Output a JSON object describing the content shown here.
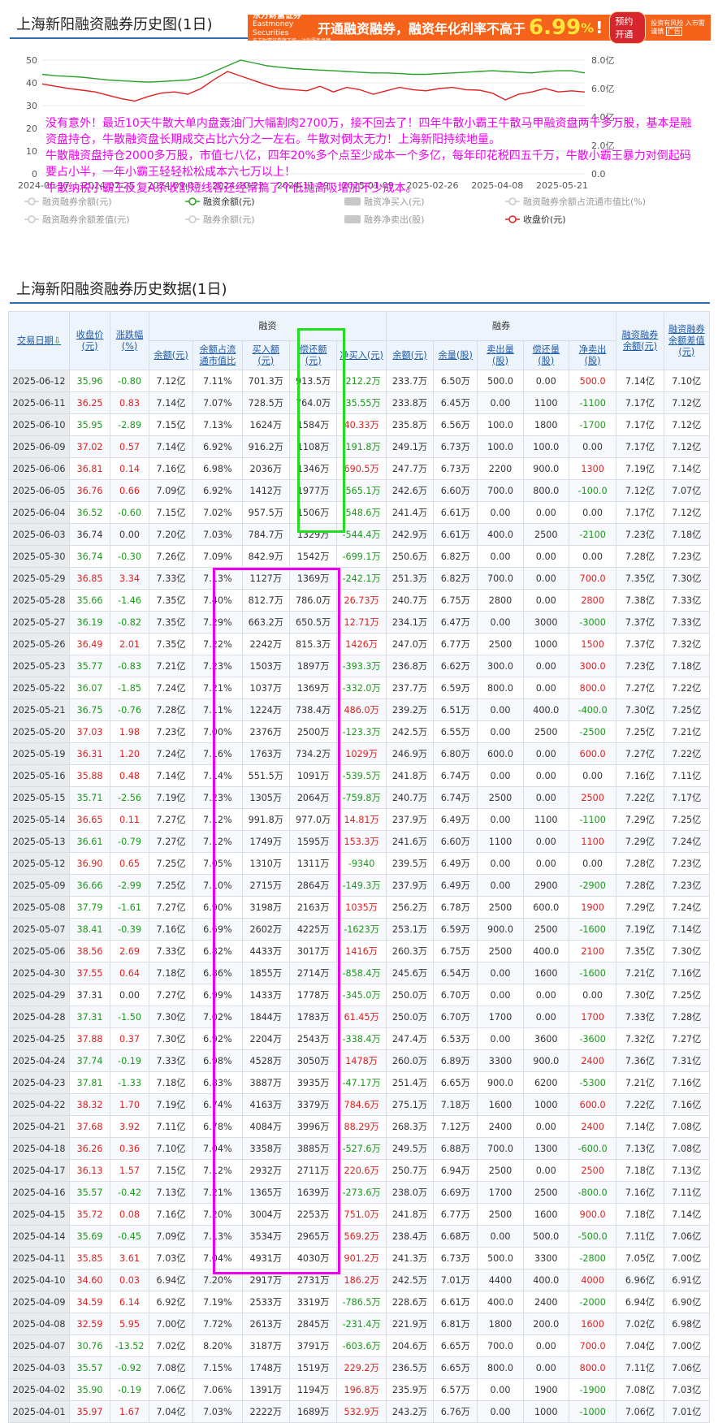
{
  "chart_section": {
    "title": "上海新阳融资融券历史图(1日)"
  },
  "ad": {
    "brand": "东方财富证券",
    "brand_en": "Eastmoney Securities",
    "brand_note": "东方财富证券旗下统一对外服务品牌",
    "slogan": "开通融资融券，融资年化利率不高于",
    "rate": "6.99",
    "pct": "%",
    "excl": "!",
    "button": "预约开通",
    "risk": "投资有风险 入市需谨慎",
    "tag": "广告"
  },
  "overlay_text": [
    "没有意外！最近10天牛散大单内盘轰油门大幅割肉2700万，接不回去了！四年牛散小霸王牛散马甲融资盘两千多万股，基本是融资盘持仓，牛散融资盘长期成交占比六分之一左右。牛散对倒太无力！上海新阳持续地量。",
    "牛散融资盘持仓2000多万股，市值七八亿，四年20%多个点至少成本一个多亿，每年印花税四五千万，牛散小霸王暴力对倒起码要占小半，一年小霸王轻轻松松成本六七万以上！",
    "牛散纳税小霸王反复A杀收割短线客还经常搞了个低抛高吸增加不少成本。"
  ],
  "chart_data": {
    "type": "line",
    "x_ticks": [
      "2024-06-17",
      "2024-07-25",
      "2024-09-03",
      "2024-10-22",
      "2024-11-29",
      "2025-01-09",
      "2025-02-26",
      "2025-04-08",
      "2025-05-21"
    ],
    "y_left": {
      "ticks": [
        "0",
        "10",
        "20",
        "30",
        "40",
        "50"
      ],
      "range": [
        0,
        50
      ]
    },
    "y_right": {
      "ticks": [
        "0.0",
        "2.0亿",
        "4.0亿",
        "6.0亿",
        "8.0亿"
      ],
      "range": [
        0,
        8
      ]
    },
    "series": [
      {
        "name": "融资余额(元)",
        "axis": "right",
        "color": "#2aa02a",
        "values": [
          7.0,
          6.9,
          6.85,
          6.8,
          6.7,
          6.6,
          6.55,
          6.5,
          6.45,
          6.5,
          6.55,
          6.6,
          6.8,
          7.2,
          7.6,
          8.0,
          7.8,
          7.6,
          7.5,
          7.4,
          7.35,
          7.3,
          7.25,
          7.2,
          7.15,
          7.1,
          7.1,
          7.05,
          7.0,
          7.0,
          7.05,
          7.1,
          7.15,
          7.2,
          7.25,
          7.2,
          7.15,
          7.1,
          7.2,
          7.25,
          7.25,
          7.1
        ]
      },
      {
        "name": "收盘价(元)",
        "axis": "left",
        "color": "#e02020",
        "values": [
          39.5,
          38.5,
          37.5,
          36.8,
          36.0,
          34.5,
          33.0,
          32.0,
          34.0,
          35.5,
          36.0,
          35.0,
          37.5,
          41.5,
          45.0,
          43.0,
          41.0,
          39.0,
          37.5,
          37.0,
          36.5,
          38.5,
          36.0,
          38.0,
          37.0,
          35.0,
          36.5,
          38.0,
          37.0,
          36.5,
          37.5,
          38.0,
          37.0,
          36.8,
          35.5,
          32.5,
          35.0,
          36.0,
          37.5,
          36.0,
          36.5,
          35.96
        ]
      }
    ],
    "legend": [
      {
        "label": "融资融券余额(元)",
        "active": false,
        "style": "circle"
      },
      {
        "label": "融资余额(元)",
        "active": true,
        "style": "circle",
        "color": "#2aa02a"
      },
      {
        "label": "融资净买入(元)",
        "active": false,
        "style": "rect"
      },
      {
        "label": "融资融券余额占流通市值比(%)",
        "active": false,
        "style": "circle"
      },
      {
        "label": "融资融券余额差值(元)",
        "active": false,
        "style": "circle"
      },
      {
        "label": "融券余额(元)",
        "active": false,
        "style": "circle"
      },
      {
        "label": "融券净卖出(股)",
        "active": false,
        "style": "rect"
      },
      {
        "label": "收盘价(元)",
        "active": true,
        "style": "circle",
        "color": "#e02020"
      }
    ]
  },
  "table_section": {
    "title": "上海新阳融资融券历史数据(1日)"
  },
  "table": {
    "group_headers": {
      "rz": "融资",
      "rq": "融券"
    },
    "headers": {
      "date": "交易日期",
      "close": "收盘价(元)",
      "chg": "涨跌幅(%)",
      "rz_bal": "余额(元)",
      "rz_ratio": "余额占流通市值比",
      "buy": "买入额(元)",
      "repay": "偿还额(元)",
      "netbuy": "净买入(元)",
      "rq_bal": "余额(元)",
      "rq_vol": "余量(股)",
      "sell": "卖出量(股)",
      "rq_repay": "偿还量(股)",
      "netsell": "净卖出(股)",
      "total": "融资融券余额(元)",
      "diff": "融资融券余额差值(元)"
    },
    "rows": [
      [
        "2025-06-12",
        "35.96",
        "-0.80",
        "7.12亿",
        "7.11%",
        "701.3万",
        "913.5万",
        "-212.2万",
        "233.7万",
        "6.50万",
        "500.0",
        "0.00",
        "500.0",
        "7.14亿",
        "7.10亿"
      ],
      [
        "2025-06-11",
        "36.25",
        "0.83",
        "7.14亿",
        "7.07%",
        "728.5万",
        "764.0万",
        "-35.55万",
        "233.8万",
        "6.45万",
        "0.00",
        "1100",
        "-1100",
        "7.17亿",
        "7.12亿"
      ],
      [
        "2025-06-10",
        "35.95",
        "-2.89",
        "7.15亿",
        "7.13%",
        "1624万",
        "1584万",
        "40.33万",
        "235.8万",
        "6.56万",
        "100.0",
        "1800",
        "-1700",
        "7.17亿",
        "7.12亿"
      ],
      [
        "2025-06-09",
        "37.02",
        "0.57",
        "7.14亿",
        "6.92%",
        "916.2万",
        "1108万",
        "-191.8万",
        "249.1万",
        "6.73万",
        "100.0",
        "100.0",
        "0.00",
        "7.17亿",
        "7.12亿"
      ],
      [
        "2025-06-06",
        "36.81",
        "0.14",
        "7.16亿",
        "6.98%",
        "2036万",
        "1346万",
        "690.5万",
        "247.7万",
        "6.73万",
        "2200",
        "900.0",
        "1300",
        "7.19亿",
        "7.14亿"
      ],
      [
        "2025-06-05",
        "36.76",
        "0.66",
        "7.09亿",
        "6.92%",
        "1412万",
        "1977万",
        "-565.1万",
        "242.6万",
        "6.60万",
        "700.0",
        "800.0",
        "-100.0",
        "7.12亿",
        "7.07亿"
      ],
      [
        "2025-06-04",
        "36.52",
        "-0.60",
        "7.15亿",
        "7.02%",
        "957.5万",
        "1506万",
        "-548.6万",
        "241.4万",
        "6.61万",
        "0.00",
        "0.00",
        "0.00",
        "7.17亿",
        "7.12亿"
      ],
      [
        "2025-06-03",
        "36.74",
        "0.00",
        "7.20亿",
        "7.03%",
        "784.7万",
        "1329万",
        "-544.4万",
        "242.9万",
        "6.61万",
        "400.0",
        "2500",
        "-2100",
        "7.23亿",
        "7.18亿"
      ],
      [
        "2025-05-30",
        "36.74",
        "-0.30",
        "7.26亿",
        "7.09%",
        "842.9万",
        "1542万",
        "-699.1万",
        "250.6万",
        "6.82万",
        "0.00",
        "0.00",
        "0.00",
        "7.28亿",
        "7.23亿"
      ],
      [
        "2025-05-29",
        "36.85",
        "3.34",
        "7.33亿",
        "7.13%",
        "1127万",
        "1369万",
        "-242.1万",
        "251.3万",
        "6.82万",
        "700.0",
        "0.00",
        "700.0",
        "7.35亿",
        "7.30亿"
      ],
      [
        "2025-05-28",
        "35.66",
        "-1.46",
        "7.35亿",
        "7.40%",
        "812.7万",
        "786.0万",
        "26.73万",
        "240.7万",
        "6.75万",
        "2800",
        "0.00",
        "2800",
        "7.38亿",
        "7.33亿"
      ],
      [
        "2025-05-27",
        "36.19",
        "-0.82",
        "7.35亿",
        "7.29%",
        "663.2万",
        "650.5万",
        "12.71万",
        "234.1万",
        "6.47万",
        "0.00",
        "3000",
        "-3000",
        "7.37亿",
        "7.33亿"
      ],
      [
        "2025-05-26",
        "36.49",
        "2.01",
        "7.35亿",
        "7.22%",
        "2242万",
        "815.3万",
        "1426万",
        "247.0万",
        "6.77万",
        "2500",
        "1000",
        "1500",
        "7.37亿",
        "7.32亿"
      ],
      [
        "2025-05-23",
        "35.77",
        "-0.83",
        "7.21亿",
        "7.23%",
        "1503万",
        "1897万",
        "-393.3万",
        "236.8万",
        "6.62万",
        "300.0",
        "0.00",
        "300.0",
        "7.23亿",
        "7.18亿"
      ],
      [
        "2025-05-22",
        "36.07",
        "-1.85",
        "7.24亿",
        "7.21%",
        "1037万",
        "1369万",
        "-332.0万",
        "237.7万",
        "6.59万",
        "800.0",
        "0.00",
        "800.0",
        "7.27亿",
        "7.22亿"
      ],
      [
        "2025-05-21",
        "36.75",
        "-0.76",
        "7.28亿",
        "7.11%",
        "1224万",
        "738.4万",
        "486.0万",
        "239.2万",
        "6.51万",
        "0.00",
        "400.0",
        "-400.0",
        "7.30亿",
        "7.25亿"
      ],
      [
        "2025-05-20",
        "37.03",
        "1.98",
        "7.23亿",
        "7.00%",
        "2376万",
        "2500万",
        "-123.3万",
        "242.5万",
        "6.55万",
        "0.00",
        "2500",
        "-2500",
        "7.25亿",
        "7.21亿"
      ],
      [
        "2025-05-19",
        "36.31",
        "1.20",
        "7.24亿",
        "7.16%",
        "1763万",
        "734.2万",
        "1029万",
        "246.9万",
        "6.80万",
        "600.0",
        "0.00",
        "600.0",
        "7.27亿",
        "7.22亿"
      ],
      [
        "2025-05-16",
        "35.88",
        "0.48",
        "7.14亿",
        "7.14%",
        "551.5万",
        "1091万",
        "-539.5万",
        "241.8万",
        "6.74万",
        "0.00",
        "0.00",
        "0.00",
        "7.16亿",
        "7.11亿"
      ],
      [
        "2025-05-15",
        "35.71",
        "-2.56",
        "7.19亿",
        "7.23%",
        "1305万",
        "2064万",
        "-759.8万",
        "240.7万",
        "6.74万",
        "2500",
        "0.00",
        "2500",
        "7.22亿",
        "7.17亿"
      ],
      [
        "2025-05-14",
        "36.65",
        "0.11",
        "7.27亿",
        "7.12%",
        "991.8万",
        "977.0万",
        "14.81万",
        "237.9万",
        "6.49万",
        "0.00",
        "1100",
        "-1100",
        "7.29亿",
        "7.25亿"
      ],
      [
        "2025-05-13",
        "36.61",
        "-0.79",
        "7.27亿",
        "7.12%",
        "1749万",
        "1595万",
        "153.3万",
        "241.6万",
        "6.60万",
        "1100",
        "0.00",
        "1100",
        "7.29亿",
        "7.24亿"
      ],
      [
        "2025-05-12",
        "36.90",
        "0.65",
        "7.25亿",
        "7.05%",
        "1310万",
        "1311万",
        "-9340",
        "239.5万",
        "6.49万",
        "0.00",
        "0.00",
        "0.00",
        "7.28亿",
        "7.23亿"
      ],
      [
        "2025-05-09",
        "36.66",
        "-2.99",
        "7.25亿",
        "7.10%",
        "2715万",
        "2864万",
        "-149.3万",
        "237.9万",
        "6.49万",
        "0.00",
        "2900",
        "-2900",
        "7.28亿",
        "7.23亿"
      ],
      [
        "2025-05-08",
        "37.79",
        "-1.61",
        "7.27亿",
        "6.90%",
        "3198万",
        "2163万",
        "1035万",
        "256.2万",
        "6.78万",
        "2500",
        "600.0",
        "1900",
        "7.29亿",
        "7.24亿"
      ],
      [
        "2025-05-07",
        "38.41",
        "-0.39",
        "7.16亿",
        "6.69%",
        "2602万",
        "4225万",
        "-1623万",
        "253.1万",
        "6.59万",
        "900.0",
        "2500",
        "-1600",
        "7.19亿",
        "7.14亿"
      ],
      [
        "2025-05-06",
        "38.56",
        "2.69",
        "7.33亿",
        "6.82%",
        "4433万",
        "3017万",
        "1416万",
        "260.3万",
        "6.75万",
        "2500",
        "400.0",
        "2100",
        "7.35亿",
        "7.30亿"
      ],
      [
        "2025-04-30",
        "37.55",
        "0.64",
        "7.18亿",
        "6.86%",
        "1855万",
        "2714万",
        "-858.4万",
        "245.6万",
        "6.54万",
        "0.00",
        "1600",
        "-1600",
        "7.21亿",
        "7.16亿"
      ],
      [
        "2025-04-29",
        "37.31",
        "0.00",
        "7.27亿",
        "6.99%",
        "1433万",
        "1778万",
        "-345.0万",
        "250.0万",
        "6.70万",
        "0.00",
        "0.00",
        "0.00",
        "7.30亿",
        "7.25亿"
      ],
      [
        "2025-04-28",
        "37.31",
        "-1.50",
        "7.30亿",
        "7.02%",
        "1844万",
        "1783万",
        "61.45万",
        "250.0万",
        "6.70万",
        "1700",
        "0.00",
        "1700",
        "7.33亿",
        "7.28亿"
      ],
      [
        "2025-04-25",
        "37.88",
        "0.37",
        "7.30亿",
        "6.92%",
        "2204万",
        "2543万",
        "-338.4万",
        "247.4万",
        "6.53万",
        "0.00",
        "3600",
        "-3600",
        "7.32亿",
        "7.27亿"
      ],
      [
        "2025-04-24",
        "37.74",
        "-0.19",
        "7.33亿",
        "6.98%",
        "4528万",
        "3050万",
        "1478万",
        "260.0万",
        "6.89万",
        "3300",
        "900.0",
        "2400",
        "7.36亿",
        "7.31亿"
      ],
      [
        "2025-04-23",
        "37.81",
        "-1.33",
        "7.18亿",
        "6.83%",
        "3887万",
        "3935万",
        "-47.17万",
        "251.4万",
        "6.65万",
        "900.0",
        "6200",
        "-5300",
        "7.21亿",
        "7.16亿"
      ],
      [
        "2025-04-22",
        "38.32",
        "1.70",
        "7.19亿",
        "6.74%",
        "4163万",
        "3379万",
        "784.6万",
        "275.1万",
        "7.18万",
        "1600",
        "1000",
        "600.0",
        "7.22亿",
        "7.16亿"
      ],
      [
        "2025-04-21",
        "37.68",
        "3.92",
        "7.11亿",
        "6.78%",
        "4084万",
        "3996万",
        "88.29万",
        "268.3万",
        "7.12万",
        "2400",
        "0.00",
        "2400",
        "7.14亿",
        "7.08亿"
      ],
      [
        "2025-04-18",
        "36.26",
        "0.36",
        "7.10亿",
        "7.04%",
        "3358万",
        "3885万",
        "-527.6万",
        "249.5万",
        "6.88万",
        "700.0",
        "1300",
        "-600.0",
        "7.13亿",
        "7.08亿"
      ],
      [
        "2025-04-17",
        "36.13",
        "1.57",
        "7.15亿",
        "7.12%",
        "2932万",
        "2711万",
        "220.6万",
        "250.7万",
        "6.94万",
        "2500",
        "0.00",
        "2500",
        "7.18亿",
        "7.13亿"
      ],
      [
        "2025-04-16",
        "35.57",
        "-0.42",
        "7.13亿",
        "7.21%",
        "1365万",
        "1639万",
        "-273.6万",
        "238.0万",
        "6.69万",
        "1700",
        "2500",
        "-800.0",
        "7.16亿",
        "7.11亿"
      ],
      [
        "2025-04-15",
        "35.72",
        "0.08",
        "7.16亿",
        "7.20%",
        "3004万",
        "2253万",
        "751.0万",
        "241.8万",
        "6.77万",
        "2500",
        "1600",
        "900.0",
        "7.18亿",
        "7.14亿"
      ],
      [
        "2025-04-14",
        "35.69",
        "-0.45",
        "7.09亿",
        "7.13%",
        "3534万",
        "2965万",
        "569.2万",
        "238.4万",
        "6.68万",
        "0.00",
        "500.0",
        "-500.0",
        "7.11亿",
        "7.06亿"
      ],
      [
        "2025-04-11",
        "35.85",
        "3.61",
        "7.03亿",
        "7.04%",
        "4931万",
        "4030万",
        "901.2万",
        "241.3万",
        "6.73万",
        "500.0",
        "3300",
        "-2800",
        "7.05亿",
        "7.00亿"
      ],
      [
        "2025-04-10",
        "34.60",
        "0.03",
        "6.94亿",
        "7.20%",
        "2917万",
        "2731万",
        "186.2万",
        "242.5万",
        "7.01万",
        "4400",
        "400.0",
        "4000",
        "6.96亿",
        "6.91亿"
      ],
      [
        "2025-04-09",
        "34.59",
        "6.14",
        "6.92亿",
        "7.19%",
        "2533万",
        "3319万",
        "-786.5万",
        "228.6万",
        "6.61万",
        "400.0",
        "2400",
        "-2000",
        "6.94亿",
        "6.90亿"
      ],
      [
        "2025-04-08",
        "32.59",
        "5.95",
        "7.00亿",
        "7.72%",
        "2613万",
        "2845万",
        "-231.4万",
        "221.9万",
        "6.81万",
        "1800",
        "200.0",
        "1600",
        "7.02亿",
        "6.98亿"
      ],
      [
        "2025-04-07",
        "30.76",
        "-13.52",
        "7.02亿",
        "8.20%",
        "3187万",
        "3791万",
        "-603.6万",
        "204.6万",
        "6.65万",
        "700.0",
        "0.00",
        "700.0",
        "7.04亿",
        "7.00亿"
      ],
      [
        "2025-04-03",
        "35.57",
        "-0.92",
        "7.08亿",
        "7.15%",
        "1748万",
        "1519万",
        "229.2万",
        "236.5万",
        "6.65万",
        "800.0",
        "0.00",
        "800.0",
        "7.11亿",
        "7.06亿"
      ],
      [
        "2025-04-02",
        "35.90",
        "-0.19",
        "7.06亿",
        "7.06%",
        "1391万",
        "1194万",
        "196.8万",
        "235.9万",
        "6.57万",
        "0.00",
        "1900",
        "-1900",
        "7.08亿",
        "7.03亿"
      ],
      [
        "2025-04-01",
        "35.97",
        "1.67",
        "7.04亿",
        "7.03%",
        "2222万",
        "1689万",
        "532.9万",
        "243.2万",
        "6.76万",
        "0.00",
        "1000",
        "-1000",
        "7.06亿",
        "7.01亿"
      ]
    ]
  },
  "colors": {
    "up": "#e02020",
    "down": "#1a9a1a",
    "green_box": "#22dd22",
    "magenta_box": "#ee00ee",
    "accent": "#2d6db5"
  }
}
